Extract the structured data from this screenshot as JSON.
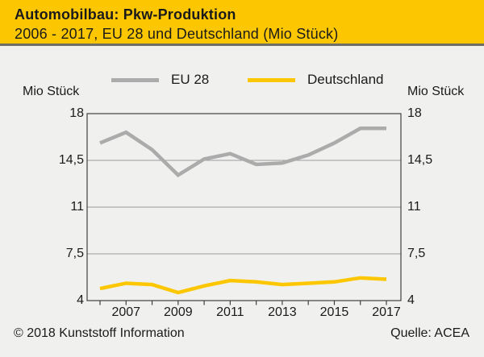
{
  "header": {
    "title": "Automobilbau: Pkw-Produktion",
    "subtitle": "2006 - 2017, EU 28 und Deutschland (Mio Stück)"
  },
  "legend": {
    "items": [
      {
        "label": "EU 28",
        "color": "#ababab"
      },
      {
        "label": "Deutschland",
        "color": "#fcc700"
      }
    ]
  },
  "axis_units": {
    "left": "Mio Stück",
    "right": "Mio Stück"
  },
  "chart_data": {
    "type": "line",
    "x": [
      2006,
      2007,
      2008,
      2009,
      2010,
      2011,
      2012,
      2013,
      2014,
      2015,
      2016,
      2017
    ],
    "x_tick_labels": [
      "2007",
      "2009",
      "2011",
      "2013",
      "2015",
      "2017"
    ],
    "series": [
      {
        "name": "EU 28",
        "color": "#ababab",
        "values": [
          15.8,
          16.6,
          15.3,
          13.4,
          14.6,
          15.0,
          14.2,
          14.3,
          14.9,
          15.8,
          16.9,
          16.9
        ]
      },
      {
        "name": "Deutschland",
        "color": "#fcc700",
        "values": [
          4.9,
          5.3,
          5.2,
          4.6,
          5.1,
          5.5,
          5.4,
          5.2,
          5.3,
          5.4,
          5.7,
          5.6
        ]
      }
    ],
    "ylim": [
      4,
      18
    ],
    "yticks": [
      {
        "value": 18,
        "label": "18"
      },
      {
        "value": 14.5,
        "label": "14,5"
      },
      {
        "value": 11,
        "label": "11"
      },
      {
        "value": 7.5,
        "label": "7,5"
      },
      {
        "value": 4,
        "label": "4"
      }
    ],
    "ylabel": "Mio Stück",
    "grid": true,
    "legend_position": "top"
  },
  "footer": {
    "copyright": "© 2018 Kunststoff Information",
    "source": "Quelle: ACEA"
  },
  "colors": {
    "header_bg": "#fcc700",
    "header_border": "#6e6e66",
    "body_bg": "#f0f1ef",
    "eu_line": "#ababab",
    "de_line": "#fcc700",
    "grid_line": "#9c9c9c",
    "axis_frame": "#3f3f3f",
    "text": "#1a1a1a"
  }
}
